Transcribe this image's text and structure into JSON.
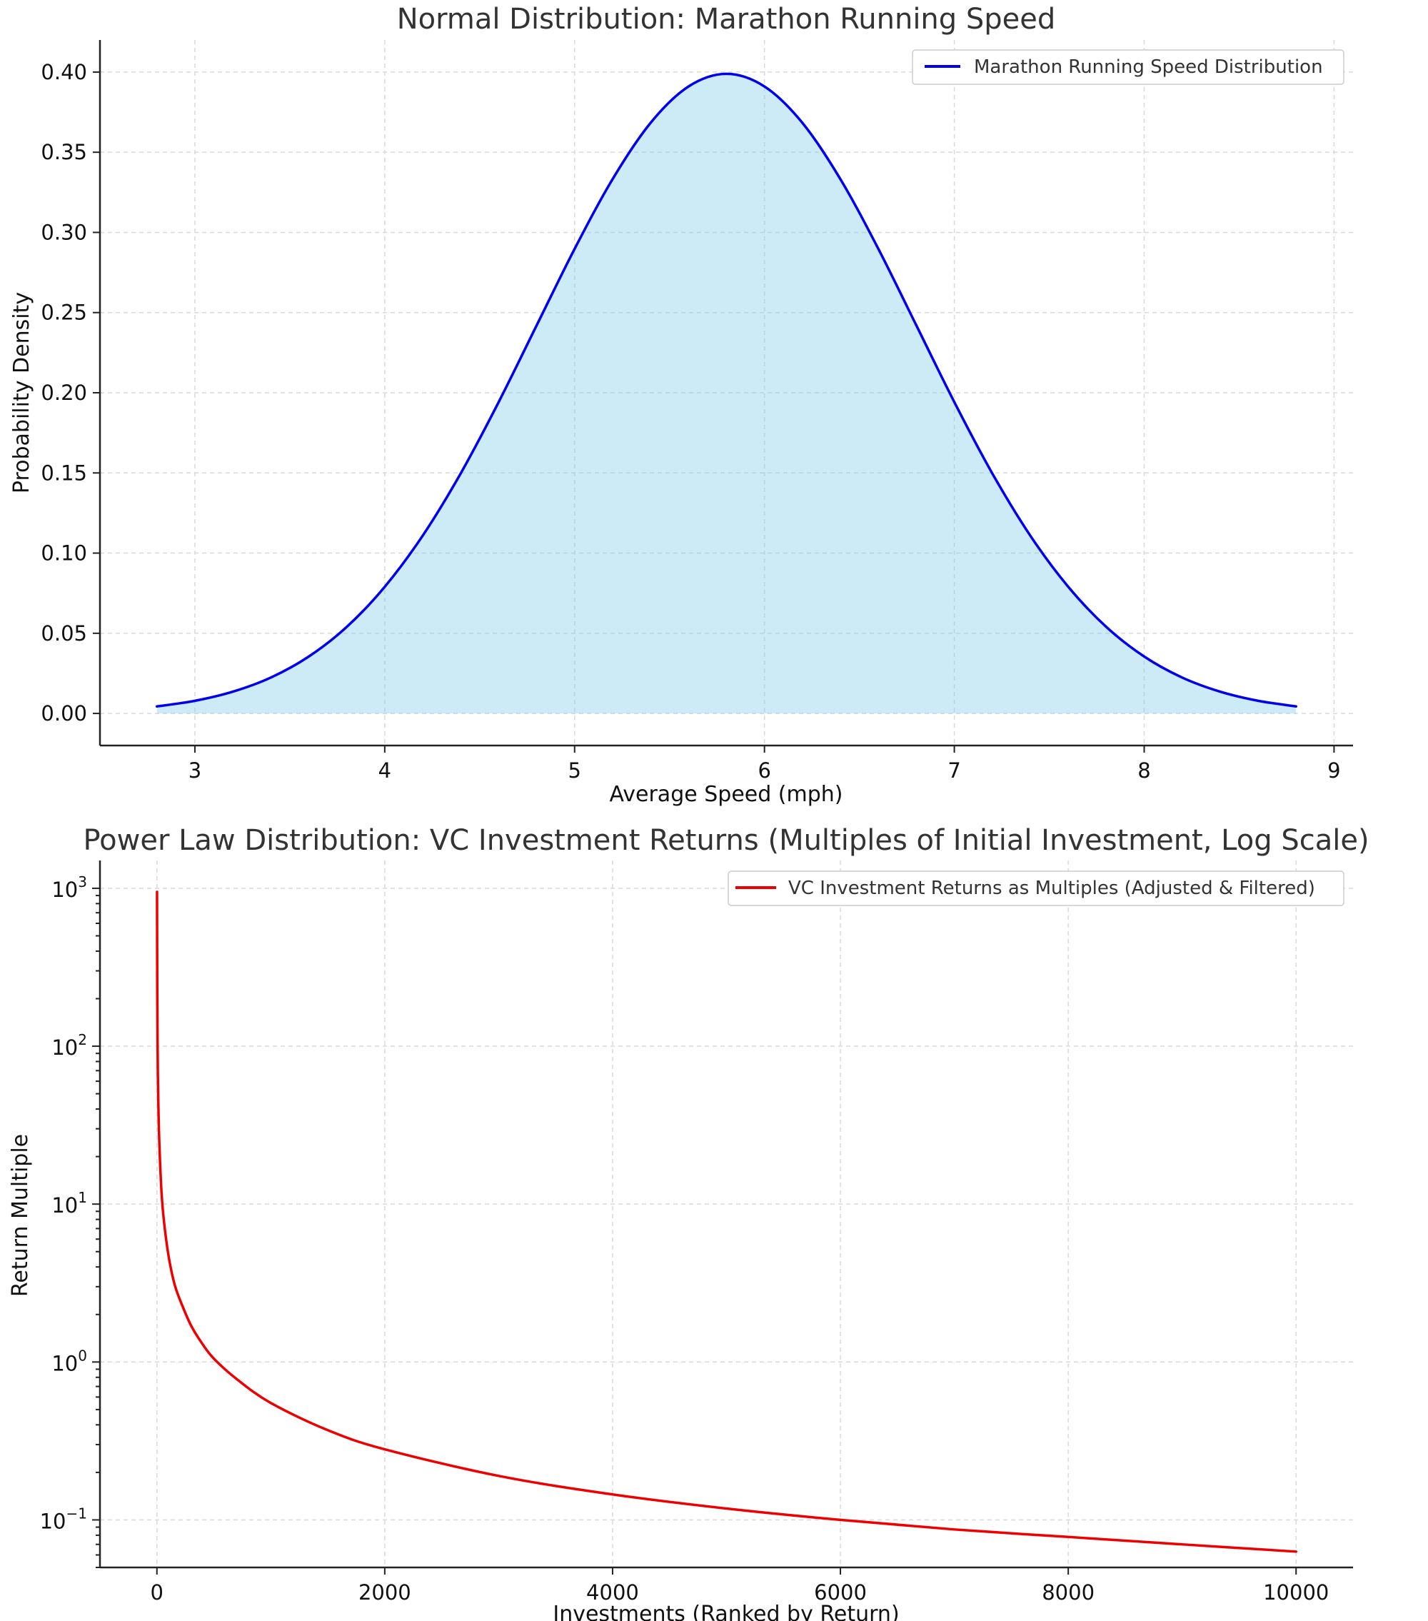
{
  "chart_data": [
    {
      "type": "area",
      "title": "Normal Distribution: Marathon Running Speed",
      "xlabel": "Average Speed (mph)",
      "ylabel": "Probability Density",
      "xlim": [
        2.5,
        9.1
      ],
      "ylim": [
        -0.02,
        0.42
      ],
      "xticks": [
        3,
        4,
        5,
        6,
        7,
        8,
        9
      ],
      "yticks": [
        0.0,
        0.05,
        0.1,
        0.15,
        0.2,
        0.25,
        0.3,
        0.35,
        0.4
      ],
      "ytick_labels": [
        "0.00",
        "0.05",
        "0.10",
        "0.15",
        "0.20",
        "0.25",
        "0.30",
        "0.35",
        "0.40"
      ],
      "grid": true,
      "legend_position": "top-right",
      "series": [
        {
          "name": "Marathon Running Speed Distribution",
          "color": "#0000ee",
          "fill_color": "#87ceeb",
          "x": [
            2.8,
            3.0,
            3.2,
            3.4,
            3.6,
            3.8,
            4.0,
            4.2,
            4.4,
            4.6,
            4.8,
            5.0,
            5.2,
            5.4,
            5.6,
            5.8,
            6.0,
            6.2,
            6.4,
            6.6,
            6.8,
            7.0,
            7.2,
            7.4,
            7.6,
            7.8,
            8.0,
            8.2,
            8.4,
            8.6,
            8.8
          ],
          "y": [
            0.0044,
            0.0079,
            0.0136,
            0.0224,
            0.0355,
            0.054,
            0.079,
            0.1109,
            0.1497,
            0.1942,
            0.242,
            0.2897,
            0.3332,
            0.3683,
            0.391,
            0.3989,
            0.391,
            0.3683,
            0.3332,
            0.2897,
            0.242,
            0.1942,
            0.1497,
            0.1109,
            0.079,
            0.054,
            0.0355,
            0.0224,
            0.0136,
            0.0079,
            0.0044
          ]
        }
      ]
    },
    {
      "type": "line",
      "title": "Power Law Distribution: VC Investment Returns (Multiples of Initial Investment, Log Scale)",
      "xlabel": "Investments (Ranked by Return)",
      "ylabel": "Return Multiple",
      "xlim": [
        -500,
        10500
      ],
      "ylim": [
        0.05,
        1500
      ],
      "yscale": "log",
      "xticks": [
        0,
        2000,
        4000,
        6000,
        8000,
        10000
      ],
      "yticks": [
        0.1,
        1,
        10,
        100,
        1000
      ],
      "ytick_labels": [
        {
          "base": "10",
          "exp": "−1"
        },
        {
          "base": "10",
          "exp": "0"
        },
        {
          "base": "10",
          "exp": "1"
        },
        {
          "base": "10",
          "exp": "2"
        },
        {
          "base": "10",
          "exp": "3"
        }
      ],
      "grid": true,
      "legend_position": "top-right",
      "series": [
        {
          "name": "VC Investment Returns as Multiples (Adjusted & Filtered)",
          "color": "#ee0000",
          "x": [
            1,
            3,
            6,
            10,
            20,
            40,
            60,
            100,
            150,
            200,
            300,
            400,
            500,
            700,
            1000,
            1500,
            2000,
            3000,
            4000,
            5000,
            6000,
            7000,
            8000,
            9000,
            10000
          ],
          "y": [
            950,
            230,
            100,
            55,
            26,
            12,
            8,
            4.8,
            3.2,
            2.5,
            1.7,
            1.3,
            1.05,
            0.78,
            0.55,
            0.37,
            0.28,
            0.19,
            0.145,
            0.118,
            0.1,
            0.087,
            0.078,
            0.07,
            0.063
          ]
        }
      ]
    }
  ]
}
